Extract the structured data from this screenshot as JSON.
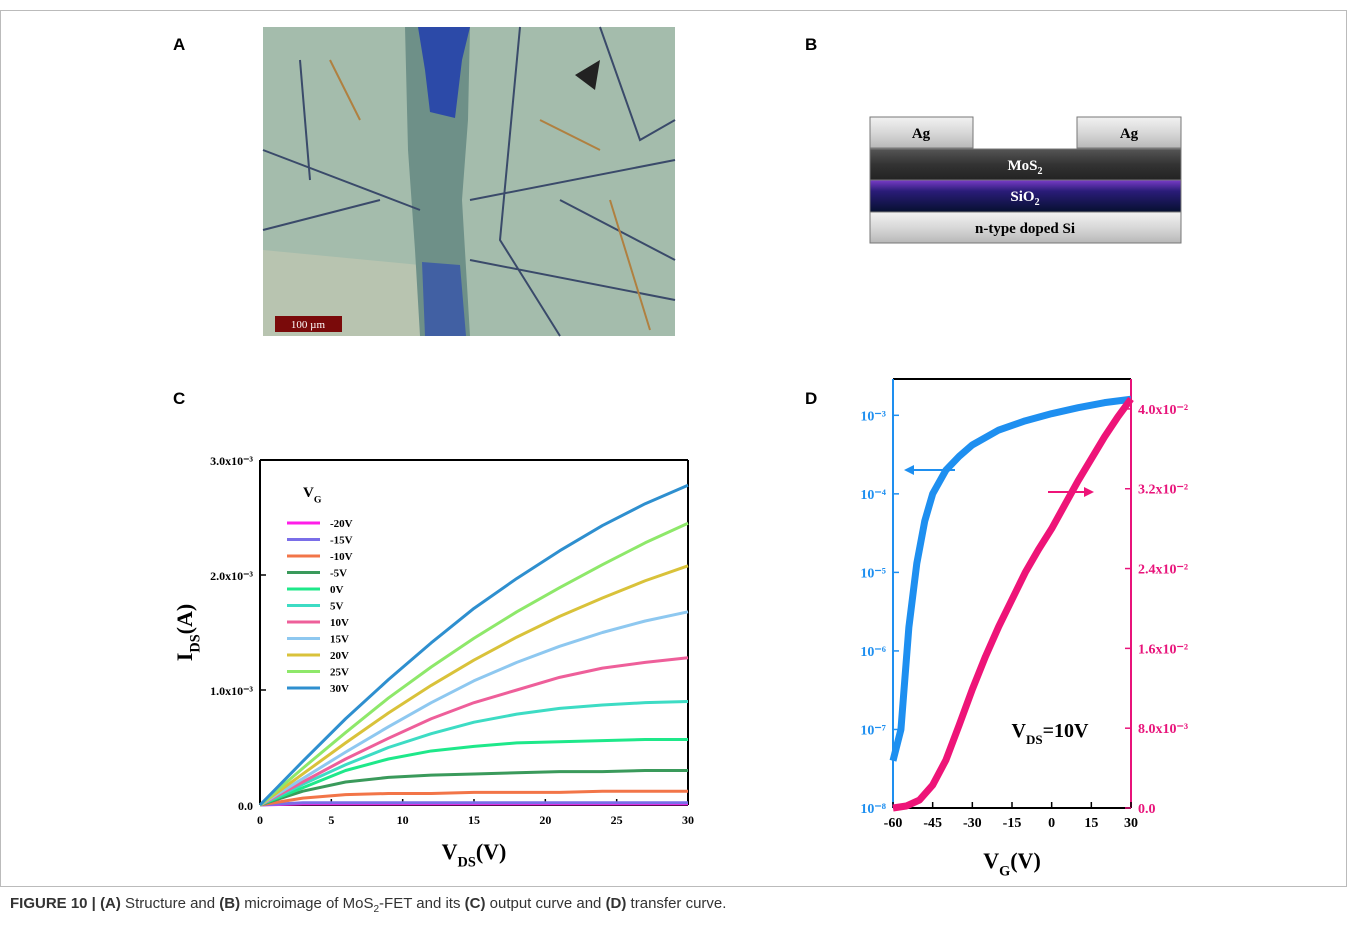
{
  "panel_labels": [
    "A",
    "B",
    "C",
    "D"
  ],
  "micrograph": {
    "scale_bar": "100 µm"
  },
  "diagram": {
    "layers": [
      {
        "text": "Ag"
      },
      {
        "text": "Ag"
      },
      {
        "text": "MoS",
        "sub": "2"
      },
      {
        "text": "SiO",
        "sub": "2"
      },
      {
        "text": "n-type doped Si"
      }
    ]
  },
  "chart_data": [
    {
      "type": "line",
      "x": [
        0,
        3,
        6,
        9,
        12,
        15,
        18,
        21,
        24,
        27,
        30
      ],
      "xlim": [
        0,
        30
      ],
      "xticks": [
        0,
        5,
        10,
        15,
        20,
        25,
        30
      ],
      "ylim": [
        0,
        0.003
      ],
      "yticks": [
        {
          "value": 0,
          "label": "0.0"
        },
        {
          "value": 0.001,
          "label": "1.0x10⁻³"
        },
        {
          "value": 0.002,
          "label": "2.0x10⁻³"
        },
        {
          "value": 0.003,
          "label": "3.0x10⁻³"
        }
      ],
      "x_label": {
        "text": "V",
        "sub": "DS",
        "tail": "(V)"
      },
      "y_label": {
        "text": "I",
        "sub": "DS",
        "tail": "(A)"
      },
      "legend_title": {
        "text": "V",
        "sub": "G"
      },
      "series": [
        {
          "name": "-20V",
          "color": "#ff1ee8",
          "values": [
            0,
            1e-05,
            1e-05,
            1e-05,
            1e-05,
            1e-05,
            1e-05,
            1e-05,
            1e-05,
            1e-05,
            1e-05
          ]
        },
        {
          "name": "-15V",
          "color": "#7a6ee8",
          "values": [
            0,
            2e-05,
            2e-05,
            2e-05,
            2e-05,
            2e-05,
            2e-05,
            2e-05,
            2e-05,
            2e-05,
            2e-05
          ]
        },
        {
          "name": "-10V",
          "color": "#f27548",
          "values": [
            0,
            6e-05,
            9e-05,
            0.0001,
            0.0001,
            0.00011,
            0.00011,
            0.00011,
            0.00012,
            0.00012,
            0.00012
          ]
        },
        {
          "name": "-5V",
          "color": "#3a9a5b",
          "values": [
            0,
            0.00012,
            0.0002,
            0.00024,
            0.00026,
            0.00027,
            0.00028,
            0.00029,
            0.00029,
            0.0003,
            0.0003
          ]
        },
        {
          "name": "0V",
          "color": "#1ee88a",
          "values": [
            0,
            0.00015,
            0.0003,
            0.0004,
            0.00047,
            0.00051,
            0.00054,
            0.00055,
            0.00056,
            0.00057,
            0.00057
          ]
        },
        {
          "name": "5V",
          "color": "#3ddcc4",
          "values": [
            0,
            0.00018,
            0.00035,
            0.0005,
            0.00062,
            0.00072,
            0.00079,
            0.00084,
            0.00087,
            0.00089,
            0.0009
          ]
        },
        {
          "name": "10V",
          "color": "#ee5f9a",
          "values": [
            0,
            0.0002,
            0.0004,
            0.00058,
            0.00075,
            0.00089,
            0.001,
            0.00111,
            0.00119,
            0.00124,
            0.00128
          ]
        },
        {
          "name": "15V",
          "color": "#8ec8f0",
          "values": [
            0,
            0.00023,
            0.00046,
            0.00068,
            0.00089,
            0.00108,
            0.00124,
            0.00138,
            0.0015,
            0.0016,
            0.00168
          ]
        },
        {
          "name": "20V",
          "color": "#d9c23a",
          "values": [
            0,
            0.00027,
            0.00054,
            0.0008,
            0.00104,
            0.00126,
            0.00146,
            0.00164,
            0.0018,
            0.00195,
            0.00208
          ]
        },
        {
          "name": "25V",
          "color": "#8ee86a",
          "values": [
            0,
            0.00032,
            0.00063,
            0.00093,
            0.0012,
            0.00145,
            0.00168,
            0.00189,
            0.00209,
            0.00228,
            0.00245
          ]
        },
        {
          "name": "30V",
          "color": "#2e8fcf",
          "values": [
            0,
            0.00038,
            0.00075,
            0.00109,
            0.00141,
            0.00171,
            0.00197,
            0.00221,
            0.00243,
            0.00262,
            0.00278
          ]
        }
      ]
    },
    {
      "type": "line",
      "log_y": true,
      "xlim": [
        -60,
        30
      ],
      "xticks": [
        -60,
        -45,
        -30,
        -15,
        0,
        15,
        30
      ],
      "ylim": [
        1e-08,
        0.0029
      ],
      "yticks": [
        {
          "value": 1e-08,
          "label": "10⁻⁸"
        },
        {
          "value": 1e-07,
          "label": "10⁻⁷"
        },
        {
          "value": 1e-06,
          "label": "10⁻⁶"
        },
        {
          "value": 1e-05,
          "label": "10⁻⁵"
        },
        {
          "value": 0.0001,
          "label": "10⁻⁴"
        },
        {
          "value": 0.001,
          "label": "10⁻³"
        }
      ],
      "y2lim": [
        0,
        0.043
      ],
      "y2ticks": [
        {
          "value": 0,
          "label": "0.0"
        },
        {
          "value": 0.008,
          "label": "8.0x10⁻³"
        },
        {
          "value": 0.016,
          "label": "1.6x10⁻²"
        },
        {
          "value": 0.024,
          "label": "2.4x10⁻²"
        },
        {
          "value": 0.032,
          "label": "3.2x10⁻²"
        },
        {
          "value": 0.04,
          "label": "4.0x10⁻²"
        }
      ],
      "y_color": "#1e8ff0",
      "y2_color": "#e8137a",
      "x_label": {
        "text": "V",
        "sub": "G",
        "tail": "(V)"
      },
      "annotation": {
        "text": "V",
        "sub": "DS",
        "tail": "=10V"
      },
      "series": [
        {
          "color": "#1e8ff0",
          "x": [
            -60,
            -57,
            -54,
            -51,
            -48,
            -45,
            -40,
            -35,
            -30,
            -20,
            -10,
            0,
            10,
            20,
            30
          ],
          "values": [
            4e-08,
            1e-07,
            2e-06,
            1.3e-05,
            4.5e-05,
            0.0001,
            0.0002,
            0.0003,
            0.00042,
            0.00065,
            0.00085,
            0.00105,
            0.00125,
            0.00145,
            0.0016
          ]
        },
        {
          "color": "#ee1478",
          "axis": "y2",
          "x": [
            -60,
            -55,
            -50,
            -45,
            -40,
            -35,
            -30,
            -25,
            -20,
            -15,
            -10,
            -5,
            0,
            5,
            10,
            15,
            20,
            25,
            30
          ],
          "values": [
            0,
            0.0002,
            0.0008,
            0.0023,
            0.0048,
            0.0083,
            0.0119,
            0.0152,
            0.0182,
            0.0209,
            0.0236,
            0.0259,
            0.028,
            0.0304,
            0.0328,
            0.035,
            0.0372,
            0.0392,
            0.041
          ]
        }
      ]
    }
  ],
  "caption": [
    {
      "text": "FIGURE 10 | ",
      "bold": true
    },
    {
      "text": "(A)",
      "bold": true
    },
    {
      "text": " Structure and "
    },
    {
      "text": "(B)",
      "bold": true
    },
    {
      "text": " microimage of MoS"
    },
    {
      "text": "2",
      "sub": true
    },
    {
      "text": "-FET and its "
    },
    {
      "text": "(C)",
      "bold": true
    },
    {
      "text": " output curve and "
    },
    {
      "text": "(D)",
      "bold": true
    },
    {
      "text": " transfer curve."
    }
  ]
}
